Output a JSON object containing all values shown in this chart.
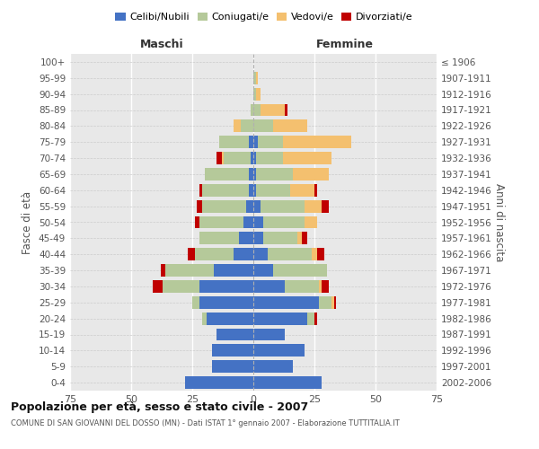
{
  "age_groups": [
    "0-4",
    "5-9",
    "10-14",
    "15-19",
    "20-24",
    "25-29",
    "30-34",
    "35-39",
    "40-44",
    "45-49",
    "50-54",
    "55-59",
    "60-64",
    "65-69",
    "70-74",
    "75-79",
    "80-84",
    "85-89",
    "90-94",
    "95-99",
    "100+"
  ],
  "birth_years": [
    "2002-2006",
    "1997-2001",
    "1992-1996",
    "1987-1991",
    "1982-1986",
    "1977-1981",
    "1972-1976",
    "1967-1971",
    "1962-1966",
    "1957-1961",
    "1952-1956",
    "1947-1951",
    "1942-1946",
    "1937-1941",
    "1932-1936",
    "1927-1931",
    "1922-1926",
    "1917-1921",
    "1912-1916",
    "1907-1911",
    "≤ 1906"
  ],
  "maschi": {
    "celibi": [
      28,
      17,
      17,
      15,
      19,
      22,
      22,
      16,
      8,
      6,
      4,
      3,
      2,
      2,
      1,
      2,
      0,
      0,
      0,
      0,
      0
    ],
    "coniugati": [
      0,
      0,
      0,
      0,
      2,
      3,
      15,
      20,
      16,
      16,
      18,
      18,
      19,
      18,
      11,
      12,
      5,
      1,
      0,
      0,
      0
    ],
    "vedovi": [
      0,
      0,
      0,
      0,
      0,
      0,
      0,
      0,
      0,
      0,
      0,
      0,
      0,
      0,
      1,
      0,
      3,
      0,
      0,
      0,
      0
    ],
    "divorziati": [
      0,
      0,
      0,
      0,
      0,
      0,
      4,
      2,
      3,
      0,
      2,
      2,
      1,
      0,
      2,
      0,
      0,
      0,
      0,
      0,
      0
    ]
  },
  "femmine": {
    "nubili": [
      28,
      16,
      21,
      13,
      22,
      27,
      13,
      8,
      6,
      4,
      4,
      3,
      1,
      1,
      1,
      2,
      0,
      0,
      0,
      0,
      0
    ],
    "coniugate": [
      0,
      0,
      0,
      0,
      3,
      5,
      14,
      22,
      18,
      14,
      17,
      18,
      14,
      15,
      11,
      10,
      8,
      3,
      1,
      1,
      0
    ],
    "vedove": [
      0,
      0,
      0,
      0,
      0,
      1,
      1,
      0,
      2,
      2,
      5,
      7,
      10,
      15,
      20,
      28,
      14,
      10,
      2,
      1,
      0
    ],
    "divorziate": [
      0,
      0,
      0,
      0,
      1,
      1,
      3,
      0,
      3,
      2,
      0,
      3,
      1,
      0,
      0,
      0,
      0,
      1,
      0,
      0,
      0
    ]
  },
  "color_celibi": "#4472c4",
  "color_coniugati": "#b5c99a",
  "color_vedovi": "#f4c06f",
  "color_divorziati": "#c00000",
  "xlim": 75,
  "title": "Popolazione per età, sesso e stato civile - 2007",
  "subtitle": "COMUNE DI SAN GIOVANNI DEL DOSSO (MN) - Dati ISTAT 1° gennaio 2007 - Elaborazione TUTTITALIA.IT",
  "ylabel_left": "Fasce di età",
  "ylabel_right": "Anni di nascita",
  "xlabel_maschi": "Maschi",
  "xlabel_femmine": "Femmine"
}
